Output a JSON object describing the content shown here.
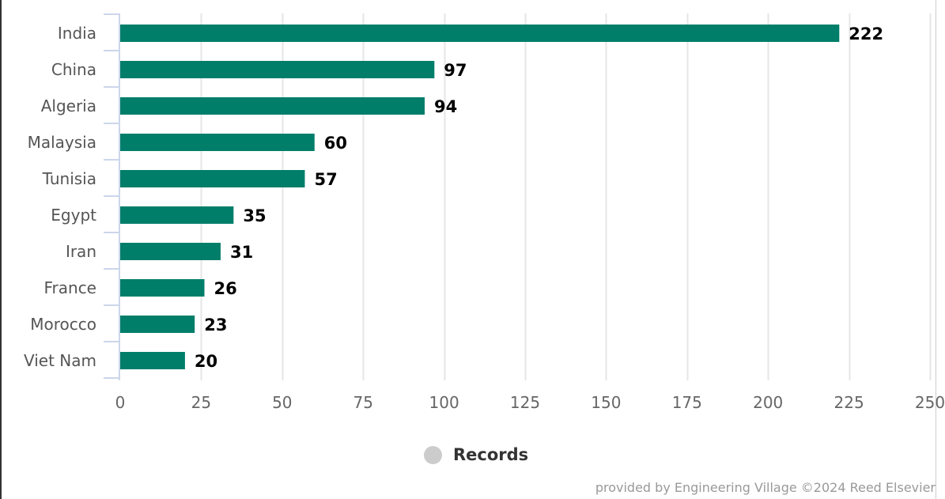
{
  "chart_data": {
    "type": "bar",
    "orientation": "horizontal",
    "title": "",
    "xlabel": "",
    "ylabel": "",
    "categories": [
      "India",
      "China",
      "Algeria",
      "Malaysia",
      "Tunisia",
      "Egypt",
      "Iran",
      "France",
      "Morocco",
      "Viet Nam"
    ],
    "series": [
      {
        "name": "Records",
        "values": [
          222,
          97,
          94,
          60,
          57,
          35,
          31,
          26,
          23,
          20
        ]
      }
    ],
    "value_axis": {
      "range": [
        0,
        250
      ],
      "ticks": [
        0,
        25,
        50,
        75,
        100,
        125,
        150,
        175,
        200,
        225,
        250
      ],
      "grid": true
    },
    "data_labels": true,
    "legend": {
      "position": "bottom-center"
    }
  },
  "legend": {
    "label": "Records"
  },
  "credits": "provided by Engineering Village ©2024 Reed Elsevier",
  "colors": {
    "bar": "#007e6a",
    "grid": "#e6e6e6",
    "axis": "#ccd6eb",
    "legend_marker": "#cccccc"
  }
}
